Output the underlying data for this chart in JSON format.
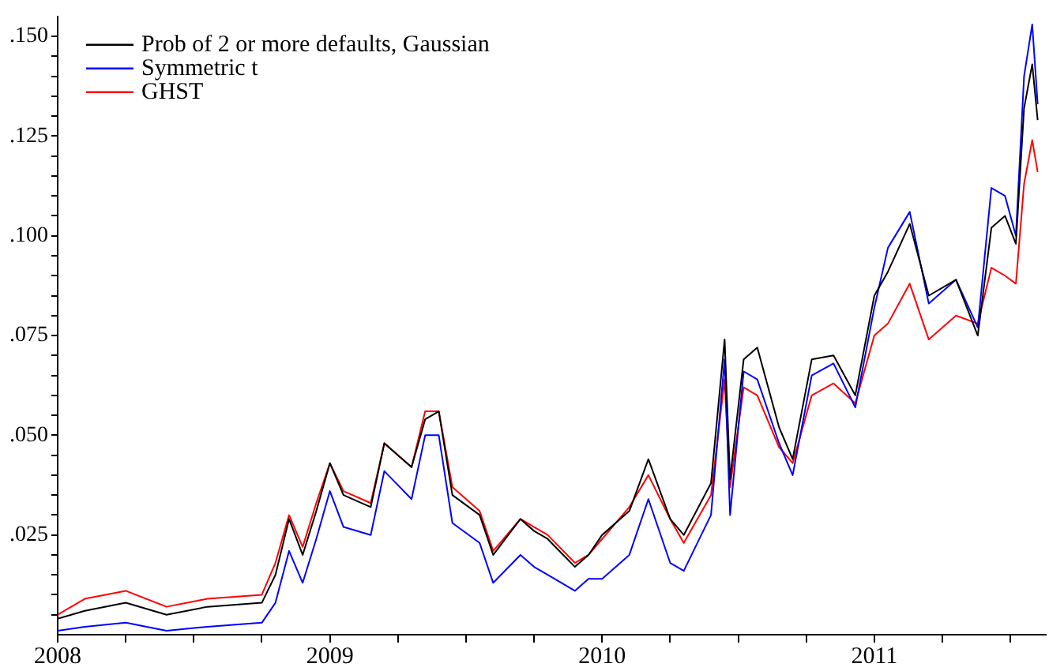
{
  "chart_data": {
    "type": "line",
    "legend": "top left",
    "grid": false,
    "marker": "none",
    "line_style": "solid",
    "x": [
      2008.0,
      2008.1,
      2008.25,
      2008.4,
      2008.55,
      2008.75,
      2008.8,
      2008.85,
      2008.9,
      2008.95,
      2009.0,
      2009.05,
      2009.15,
      2009.2,
      2009.3,
      2009.35,
      2009.4,
      2009.45,
      2009.55,
      2009.6,
      2009.7,
      2009.75,
      2009.8,
      2009.9,
      2009.95,
      2010.0,
      2010.1,
      2010.17,
      2010.25,
      2010.3,
      2010.4,
      2010.45,
      2010.47,
      2010.52,
      2010.57,
      2010.65,
      2010.7,
      2010.77,
      2010.85,
      2010.93,
      2011.0,
      2011.05,
      2011.13,
      2011.2,
      2011.3,
      2011.38,
      2011.43,
      2011.48,
      2011.52,
      2011.55,
      2011.58,
      2011.6
    ],
    "series": [
      {
        "name": "Prob of 2 or more defaults, Gaussian",
        "color": "#000000",
        "values": [
          0.004,
          0.006,
          0.008,
          0.005,
          0.007,
          0.008,
          0.015,
          0.029,
          0.02,
          0.031,
          0.043,
          0.035,
          0.032,
          0.048,
          0.042,
          0.054,
          0.056,
          0.035,
          0.03,
          0.02,
          0.029,
          0.026,
          0.024,
          0.017,
          0.02,
          0.025,
          0.031,
          0.044,
          0.029,
          0.025,
          0.038,
          0.074,
          0.039,
          0.069,
          0.072,
          0.052,
          0.044,
          0.069,
          0.07,
          0.06,
          0.085,
          0.091,
          0.103,
          0.085,
          0.089,
          0.075,
          0.102,
          0.105,
          0.098,
          0.132,
          0.143,
          0.129
        ]
      },
      {
        "name": "Symmetric t",
        "color": "#0000ff",
        "values": [
          0.001,
          0.002,
          0.003,
          0.001,
          0.002,
          0.003,
          0.008,
          0.021,
          0.013,
          0.024,
          0.036,
          0.027,
          0.025,
          0.041,
          0.034,
          0.05,
          0.05,
          0.028,
          0.023,
          0.013,
          0.02,
          0.017,
          0.015,
          0.011,
          0.014,
          0.014,
          0.02,
          0.034,
          0.018,
          0.016,
          0.03,
          0.069,
          0.03,
          0.066,
          0.064,
          0.048,
          0.04,
          0.065,
          0.068,
          0.057,
          0.082,
          0.097,
          0.106,
          0.083,
          0.089,
          0.077,
          0.112,
          0.11,
          0.1,
          0.14,
          0.153,
          0.133
        ]
      },
      {
        "name": "GHST",
        "color": "#ff0000",
        "values": [
          0.005,
          0.009,
          0.011,
          0.007,
          0.009,
          0.01,
          0.018,
          0.03,
          0.022,
          0.033,
          0.043,
          0.036,
          0.033,
          0.048,
          0.042,
          0.056,
          0.056,
          0.037,
          0.031,
          0.021,
          0.029,
          0.027,
          0.025,
          0.018,
          0.02,
          0.024,
          0.032,
          0.04,
          0.029,
          0.023,
          0.035,
          0.064,
          0.037,
          0.062,
          0.06,
          0.047,
          0.043,
          0.06,
          0.063,
          0.058,
          0.075,
          0.078,
          0.088,
          0.074,
          0.08,
          0.078,
          0.092,
          0.09,
          0.088,
          0.113,
          0.124,
          0.116
        ]
      }
    ],
    "xlim": [
      2008,
      2011.63
    ],
    "xticks": [
      2008,
      {
        "value": 2008.25,
        "label": null
      },
      {
        "value": 2008.5,
        "label": null
      },
      {
        "value": 2008.75,
        "label": null
      },
      2009,
      {
        "value": 2009.25,
        "label": null
      },
      {
        "value": 2009.5,
        "label": null
      },
      {
        "value": 2009.75,
        "label": null
      },
      2010,
      {
        "value": 2010.25,
        "label": null
      },
      {
        "value": 2010.5,
        "label": null
      },
      {
        "value": 2010.75,
        "label": null
      },
      2011,
      {
        "value": 2011.25,
        "label": null
      },
      {
        "value": 2011.5,
        "label": null
      }
    ],
    "ylim": [
      0,
      0.155
    ],
    "yticks": [
      {
        "value": 0.005,
        "label": null
      },
      {
        "value": 0.01,
        "label": null
      },
      {
        "value": 0.015,
        "label": null
      },
      {
        "value": 0.02,
        "label": null
      },
      {
        "value": 0.025,
        "label": ".025"
      },
      {
        "value": 0.03,
        "label": null
      },
      {
        "value": 0.035,
        "label": null
      },
      {
        "value": 0.04,
        "label": null
      },
      {
        "value": 0.045,
        "label": null
      },
      {
        "value": 0.05,
        "label": ".050"
      },
      {
        "value": 0.055,
        "label": null
      },
      {
        "value": 0.06,
        "label": null
      },
      {
        "value": 0.065,
        "label": null
      },
      {
        "value": 0.07,
        "label": null
      },
      {
        "value": 0.075,
        "label": ".075"
      },
      {
        "value": 0.08,
        "label": null
      },
      {
        "value": 0.085,
        "label": null
      },
      {
        "value": 0.09,
        "label": null
      },
      {
        "value": 0.095,
        "label": null
      },
      {
        "value": 0.1,
        "label": ".100"
      },
      {
        "value": 0.105,
        "label": null
      },
      {
        "value": 0.11,
        "label": null
      },
      {
        "value": 0.115,
        "label": null
      },
      {
        "value": 0.12,
        "label": null
      },
      {
        "value": 0.125,
        "label": ".125"
      },
      {
        "value": 0.13,
        "label": null
      },
      {
        "value": 0.135,
        "label": null
      },
      {
        "value": 0.14,
        "label": null
      },
      {
        "value": 0.145,
        "label": null
      },
      {
        "value": 0.15,
        "label": ".150"
      }
    ]
  }
}
